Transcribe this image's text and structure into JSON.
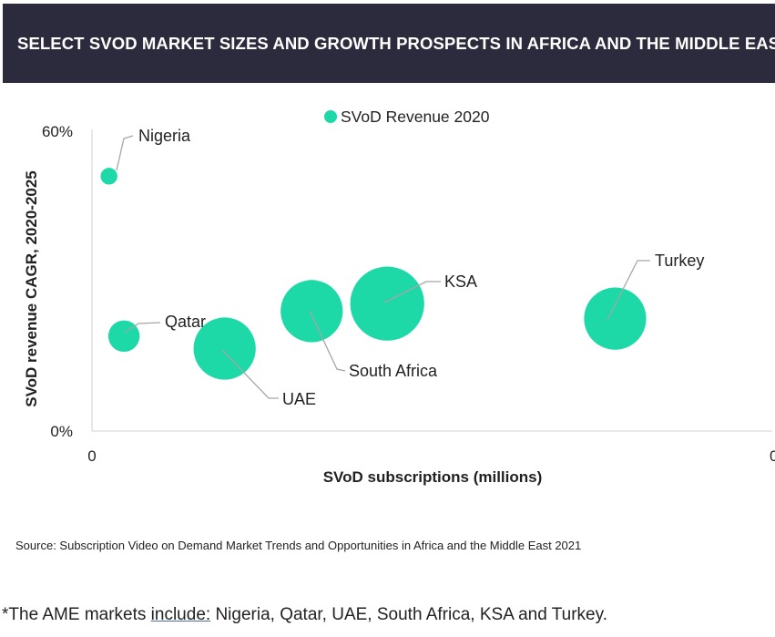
{
  "header": {
    "title": "SELECT SVOD MARKET SIZES AND GROWTH PROSPECTS IN AFRICA AND THE MIDDLE EAST"
  },
  "chart_data": {
    "type": "bubble",
    "xlabel": "SVoD subscriptions (millions)",
    "ylabel": "SVoD revenue CAGR, 2020-2025",
    "xlim": [
      0,
      1
    ],
    "ylim": [
      0,
      60
    ],
    "y_unit": "%",
    "x_ticks": [
      "0",
      "0"
    ],
    "y_ticks": [
      "0%",
      "60%"
    ],
    "legend": {
      "label": "SVoD Revenue 2020",
      "placement": "top-center"
    },
    "grid": false,
    "color": "#1dd8a7",
    "series": [
      {
        "name": "SVoD Revenue 2020",
        "points": [
          {
            "label": "Nigeria",
            "x": 0.025,
            "y": 51,
            "size": 0.04
          },
          {
            "label": "Qatar",
            "x": 0.047,
            "y": 19,
            "size": 0.14
          },
          {
            "label": "UAE",
            "x": 0.195,
            "y": 16.5,
            "size": 0.55
          },
          {
            "label": "South Africa",
            "x": 0.323,
            "y": 24,
            "size": 0.55
          },
          {
            "label": "KSA",
            "x": 0.434,
            "y": 25.5,
            "size": 0.78
          },
          {
            "label": "Turkey",
            "x": 0.769,
            "y": 22.5,
            "size": 0.55
          }
        ]
      }
    ]
  },
  "source": "Source: Subscription Video on Demand Market Trends and Opportunities in Africa and the Middle East 2021",
  "footnote": {
    "prefix": "*The AME markets ",
    "underlined": "include:",
    "rest": " Nigeria, Qatar, UAE, South Africa, KSA and Turkey."
  }
}
